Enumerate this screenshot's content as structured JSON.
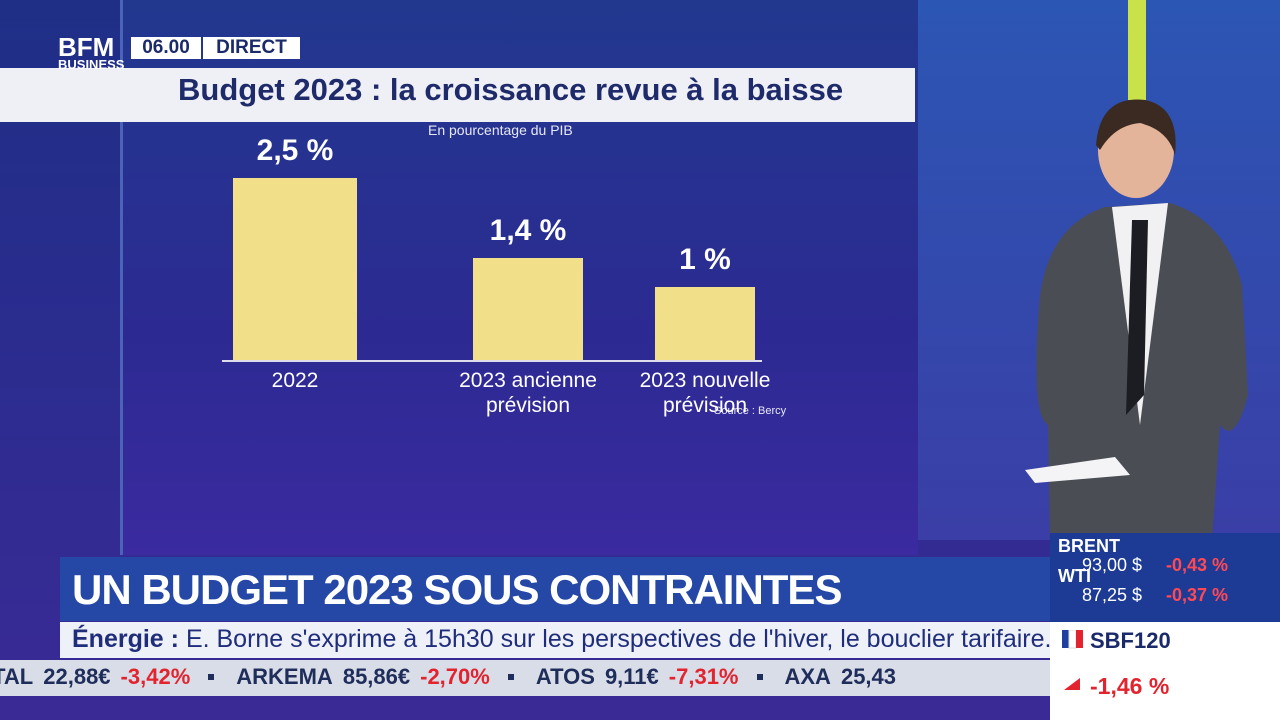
{
  "chart_data": {
    "type": "bar",
    "title": "Budget 2023 : la croissance revue à la baisse",
    "subtitle": "En pourcentage du PIB",
    "categories": [
      "2022",
      "2023 ancienne prévision",
      "2023 nouvelle prévision"
    ],
    "values": [
      2.5,
      1.4,
      1
    ],
    "value_labels": [
      "2,5 %",
      "1,4 %",
      "1 %"
    ],
    "color": "#f2df8a",
    "ylim": [
      0,
      2.5
    ],
    "source": "Source : Bercy"
  },
  "channel": {
    "logo_top": "BFM",
    "logo_bottom": "BUSINESS",
    "time": "06.00",
    "live": "DIRECT"
  },
  "headline": "UN BUDGET 2023 SOUS CONTRAINTES",
  "news_ticker": {
    "label": "Énergie :",
    "text": "E. Borne s'exprime à 15h30 sur les perspectives de l'hiver, le bouclier tarifaire."
  },
  "stock_ticker": [
    {
      "name": "ITAL",
      "price": "22,88€",
      "change": "-3,42%"
    },
    {
      "name": "ARKEMA",
      "price": "85,86€",
      "change": "-2,70%"
    },
    {
      "name": "ATOS",
      "price": "9,11€",
      "change": "-7,31%"
    },
    {
      "name": "AXA",
      "price": "25,43",
      "change": ""
    }
  ],
  "markets": [
    {
      "name": "BRENT",
      "price": "93,00 $",
      "change": "-0,43 %"
    },
    {
      "name": "WTI",
      "price": "87,25 $",
      "change": "-0,37 %"
    }
  ],
  "index": {
    "name": "SBF120",
    "change": "-1,46 %"
  }
}
